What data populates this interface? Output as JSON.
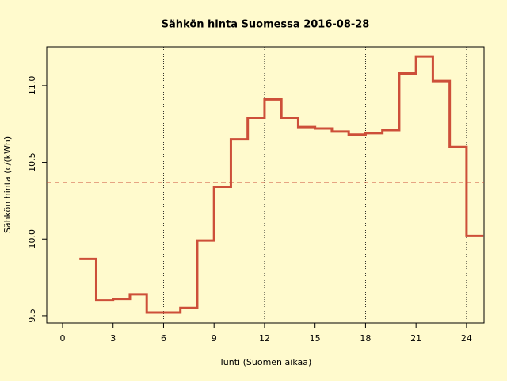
{
  "chart_data": {
    "type": "step",
    "title": "Sähkön hinta Suomessa 2016-08-28",
    "x_label": "Tunti (Suomen aikaa)",
    "y_label": "Sähkön hinta (c/(kWh)",
    "x": [
      1,
      2,
      3,
      4,
      5,
      6,
      7,
      8,
      9,
      10,
      11,
      12,
      13,
      14,
      15,
      16,
      17,
      18,
      19,
      20,
      21,
      22,
      23,
      24,
      25
    ],
    "values": [
      9.87,
      9.6,
      9.61,
      9.64,
      9.52,
      9.52,
      9.55,
      9.99,
      10.34,
      10.65,
      10.79,
      10.91,
      10.79,
      10.73,
      10.72,
      10.7,
      10.68,
      10.69,
      10.71,
      11.08,
      11.19,
      11.03,
      10.6,
      10.02,
      10.02
    ],
    "color": "#cd4f39",
    "mean_line": 10.37,
    "xlim": [
      -0.94,
      25.04
    ],
    "ylim": [
      9.453,
      11.253
    ],
    "xticks": [
      0,
      3,
      6,
      9,
      12,
      15,
      18,
      21,
      24
    ],
    "yticks": [
      9.5,
      {
        "value": 10,
        "label": "10.0"
      },
      10.5,
      {
        "value": 11,
        "label": "11.0"
      }
    ],
    "vgrid": [
      6,
      12,
      18,
      24
    ],
    "background": "#fffacd"
  }
}
